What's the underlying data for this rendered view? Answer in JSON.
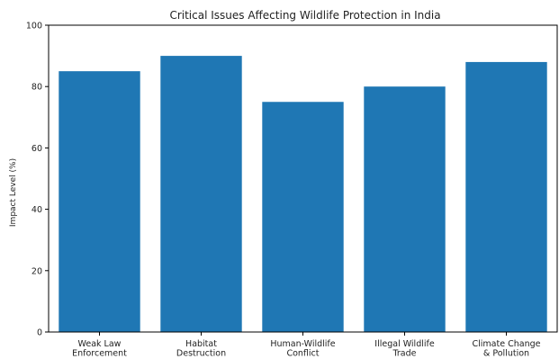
{
  "chart_data": {
    "type": "bar",
    "title": "Critical Issues Affecting Wildlife Protection in India",
    "xlabel": "",
    "ylabel": "Impact Level (%)",
    "ylim": [
      0,
      100
    ],
    "yticks": [
      0,
      20,
      40,
      60,
      80,
      100
    ],
    "categories": [
      [
        "Weak Law",
        "Enforcement"
      ],
      [
        "Habitat",
        "Destruction"
      ],
      [
        "Human-Wildlife",
        "Conflict"
      ],
      [
        "Illegal Wildlife",
        "Trade"
      ],
      [
        "Climate Change",
        "& Pollution"
      ]
    ],
    "values": [
      85,
      90,
      75,
      80,
      88
    ],
    "bar_color": "#1f77b4",
    "grid": false
  }
}
